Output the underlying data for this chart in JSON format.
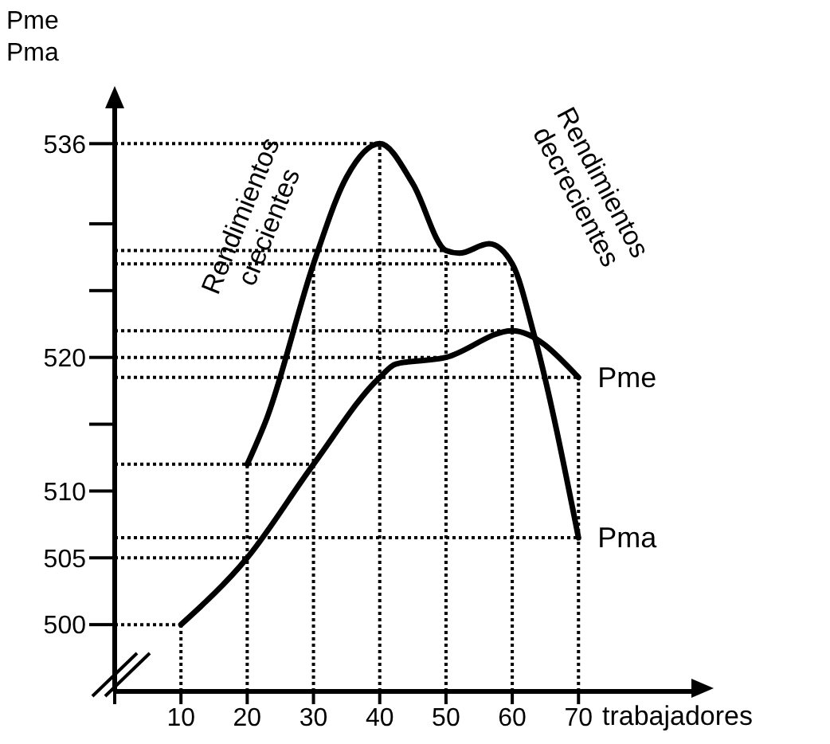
{
  "chart_data": {
    "type": "line",
    "xlabel": "trabajadores",
    "ylabel": "Pme\nPma",
    "annotations": [
      "Rendimientos crecientes",
      "Rendimientos decrecientes"
    ],
    "series": [
      {
        "name": "Pme",
        "color": "#000000",
        "x": [
          10,
          20,
          30,
          40,
          42.4,
          50,
          60,
          70
        ],
        "values": [
          500,
          505,
          512,
          518.5,
          519.5,
          520,
          522,
          518.5
        ]
      },
      {
        "name": "Pma",
        "color": "#000000",
        "x": [
          20,
          23,
          30,
          35,
          40,
          45,
          50,
          52,
          56.5,
          60,
          63.4,
          70
        ],
        "values": [
          512,
          515.5,
          527,
          533.5,
          536,
          533,
          528,
          527.8,
          528.5,
          527,
          521.5,
          506.5
        ]
      }
    ],
    "xlim": [
      0,
      88
    ],
    "xticks": [
      {
        "value": 0,
        "label": null
      },
      10,
      20,
      30,
      40,
      50,
      60,
      70
    ],
    "ylim": [
      495,
      539
    ],
    "yticks": [
      500,
      505,
      510,
      {
        "value": 515,
        "label": null
      },
      520,
      {
        "value": 525,
        "label": null
      },
      {
        "value": 530,
        "label": null
      },
      536
    ],
    "ref_lines": [
      {
        "axis": "y",
        "value": 536,
        "line_style": "dotted"
      },
      {
        "axis": "y",
        "value": 528,
        "line_style": "dotted"
      },
      {
        "axis": "y",
        "value": 527,
        "line_style": "dotted"
      },
      {
        "axis": "y",
        "value": 522,
        "line_style": "dotted"
      },
      {
        "axis": "y",
        "value": 520,
        "line_style": "dotted"
      },
      {
        "axis": "y",
        "value": 518.5,
        "line_style": "dotted"
      },
      {
        "axis": "y",
        "value": 512,
        "line_style": "dotted"
      },
      {
        "axis": "y",
        "value": 506.5,
        "line_style": "dotted"
      },
      {
        "axis": "y",
        "value": 505,
        "line_style": "dotted"
      },
      {
        "axis": "y",
        "value": 500,
        "line_style": "dotted"
      },
      {
        "axis": "x",
        "value": 10,
        "line_style": "dotted"
      },
      {
        "axis": "x",
        "value": 20,
        "line_style": "dotted"
      },
      {
        "axis": "x",
        "value": 30,
        "line_style": "dotted"
      },
      {
        "axis": "x",
        "value": 40,
        "line_style": "dotted"
      },
      {
        "axis": "x",
        "value": 50,
        "line_style": "dotted"
      },
      {
        "axis": "x",
        "value": 60,
        "line_style": "dotted"
      },
      {
        "axis": "x",
        "value": 70,
        "line_style": "dotted"
      }
    ],
    "legend": false,
    "marker": "none",
    "line_style": "solid"
  }
}
